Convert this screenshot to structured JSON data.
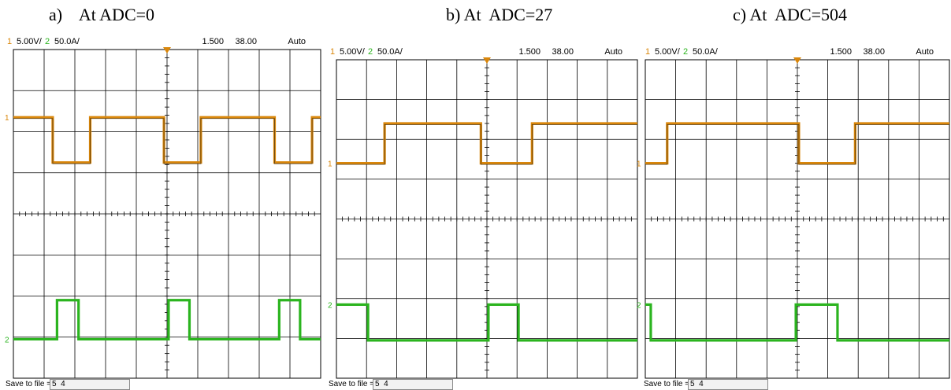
{
  "captions": [
    "a)    At ADC=0",
    "b) At  ADC=27",
    "c) At  ADC=504"
  ],
  "header": {
    "ch1_num": "1",
    "ch1_scale": "5.00V/",
    "ch2_num": "2",
    "ch2_scale": "50.0A/",
    "time_pos": "1.500",
    "time_div": "38.00",
    "trigger_mode": "Auto"
  },
  "footer": {
    "save_label": "Save to file =",
    "save_value": "5  4"
  },
  "channel_markers": {
    "ch1": "1",
    "ch2": "2"
  },
  "colors": {
    "ch1": "#d9860a",
    "ch1_dark": "#3a2a10",
    "ch2": "#2bb41f",
    "grid": "#000000"
  },
  "chart_data": [
    {
      "type": "line",
      "title": "a)    At ADC=0",
      "grid": true,
      "xlim": [
        0,
        10
      ],
      "ylim": [
        -4,
        4
      ],
      "series": [
        {
          "channel": 1,
          "steps": [
            [
              0,
              2.35
            ],
            [
              1.28,
              1.25
            ],
            [
              2.5,
              2.35
            ],
            [
              4.9,
              1.25
            ],
            [
              6.1,
              2.35
            ],
            [
              8.5,
              1.25
            ],
            [
              9.72,
              2.35
            ]
          ]
        },
        {
          "channel": 2,
          "steps": [
            [
              0,
              -3.05
            ],
            [
              1.42,
              -2.1
            ],
            [
              2.12,
              -3.05
            ],
            [
              5.05,
              -2.1
            ],
            [
              5.73,
              -3.05
            ],
            [
              8.65,
              -2.1
            ],
            [
              9.33,
              -3.05
            ]
          ]
        }
      ]
    },
    {
      "type": "line",
      "title": "b) At  ADC=27",
      "grid": true,
      "xlim": [
        0,
        10
      ],
      "ylim": [
        -4,
        4
      ],
      "series": [
        {
          "channel": 1,
          "steps": [
            [
              0,
              1.4
            ],
            [
              1.6,
              2.4
            ],
            [
              4.8,
              1.4
            ],
            [
              6.5,
              2.4
            ]
          ]
        },
        {
          "channel": 2,
          "steps": [
            [
              0,
              -2.15
            ],
            [
              1.05,
              -3.05
            ],
            [
              5.05,
              -2.15
            ],
            [
              6.05,
              -3.05
            ]
          ]
        }
      ]
    },
    {
      "type": "line",
      "title": "c) At  ADC=504",
      "grid": true,
      "xlim": [
        0,
        10
      ],
      "ylim": [
        -4,
        4
      ],
      "series": [
        {
          "channel": 1,
          "steps": [
            [
              0,
              1.4
            ],
            [
              0.72,
              2.4
            ],
            [
              5.05,
              1.4
            ],
            [
              6.9,
              2.4
            ]
          ]
        },
        {
          "channel": 2,
          "steps": [
            [
              0,
              -2.15
            ],
            [
              0.18,
              -3.05
            ],
            [
              4.95,
              -2.15
            ],
            [
              6.32,
              -3.05
            ]
          ]
        }
      ]
    }
  ]
}
